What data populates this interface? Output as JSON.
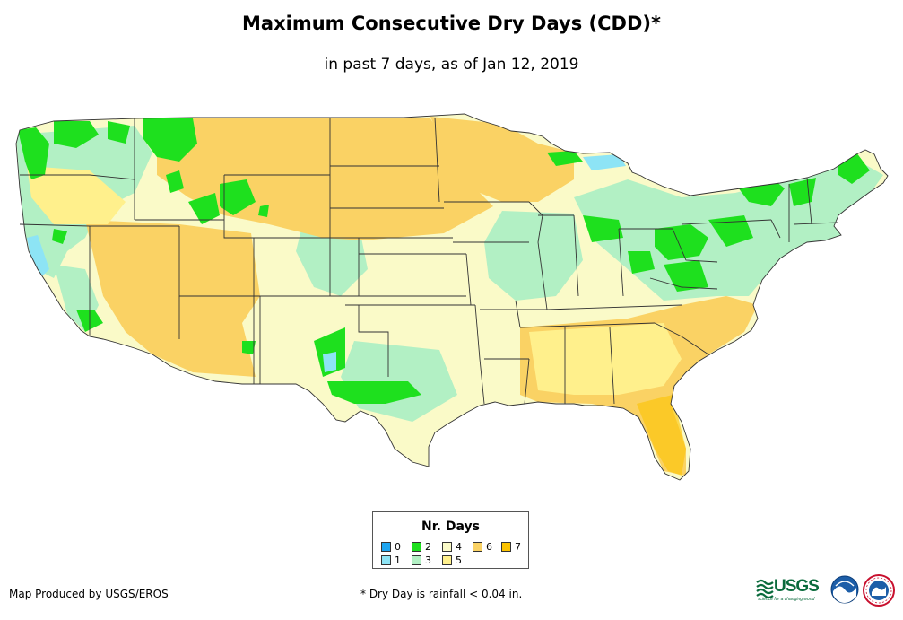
{
  "header": {
    "title": "Maximum Consecutive Dry Days (CDD)*",
    "subtitle": "in past 7 days, as of Jan 12, 2019"
  },
  "legend": {
    "title": "Nr. Days",
    "items": [
      {
        "label": "0",
        "color": "#1ea5f0"
      },
      {
        "label": "1",
        "color": "#8de4f5"
      },
      {
        "label": "2",
        "color": "#1ee01e"
      },
      {
        "label": "3",
        "color": "#b2f0c4"
      },
      {
        "label": "4",
        "color": "#fafac8"
      },
      {
        "label": "5",
        "color": "#fff08c"
      },
      {
        "label": "6",
        "color": "#fad264"
      },
      {
        "label": "7",
        "color": "#fcc300"
      }
    ]
  },
  "footer": {
    "credit": "Map Produced by USGS/EROS",
    "note": "* Dry Day is rainfall < 0.04 in."
  },
  "logos": {
    "usgs": {
      "text": "USGS",
      "tagline": "science for a changing world",
      "color": "#0a6b3c"
    },
    "noaa": {
      "text": "NOAA",
      "color": "#1d5ea8"
    },
    "nws": {
      "text": "NWS",
      "color": "#c8102e"
    }
  }
}
